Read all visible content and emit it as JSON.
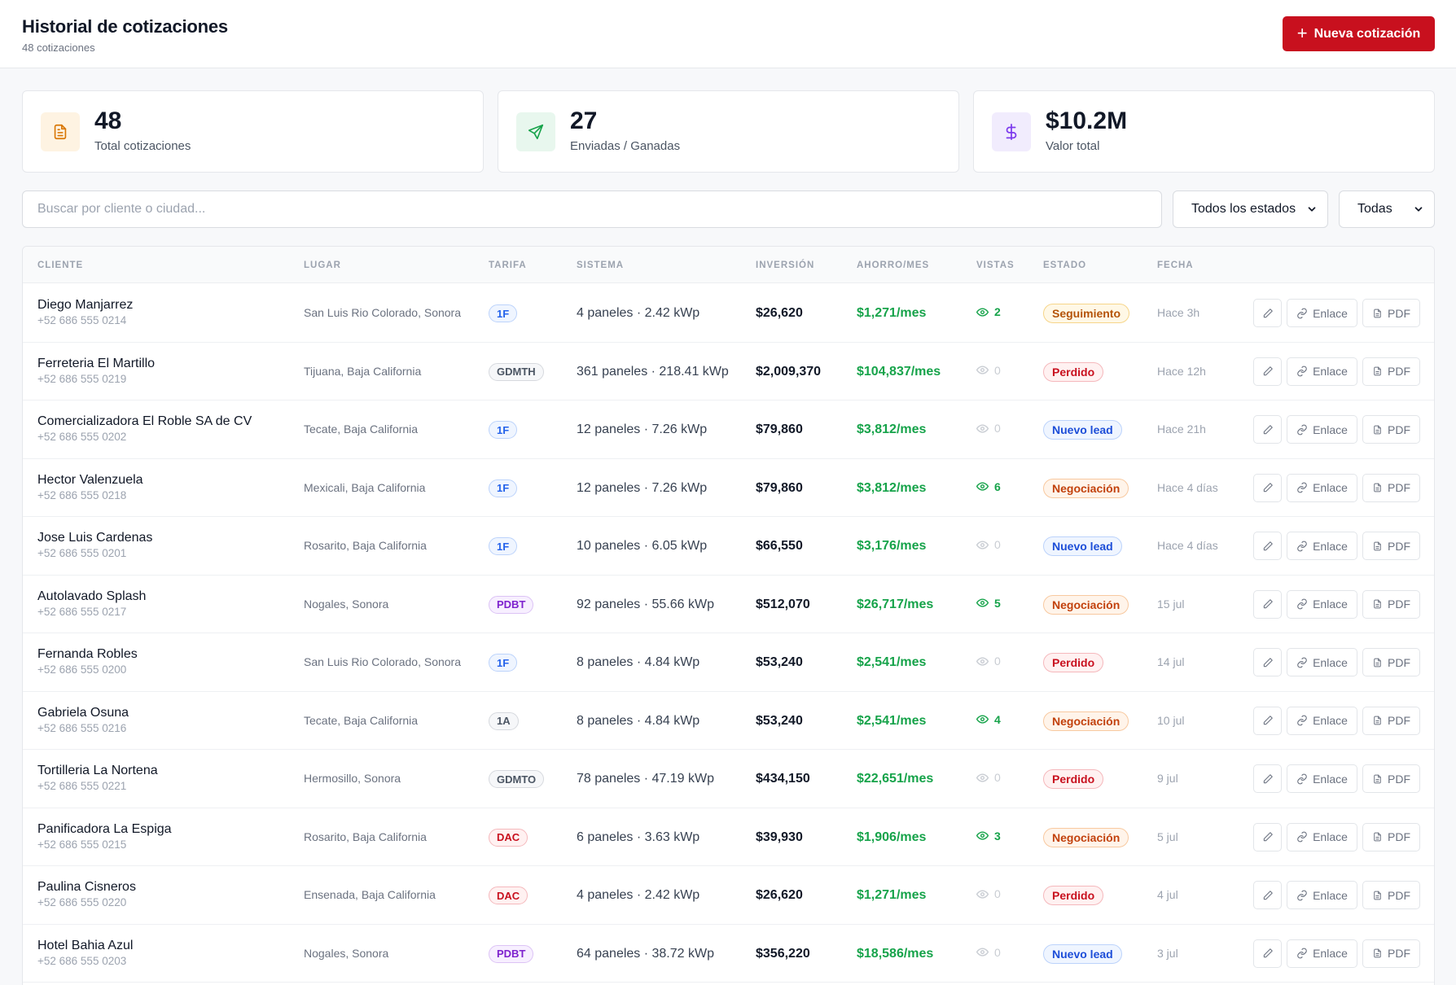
{
  "header": {
    "title": "Historial de cotizaciones",
    "subtitle": "48 cotizaciones",
    "new_button_label": "Nueva cotización"
  },
  "stats": [
    {
      "value": "48",
      "label": "Total cotizaciones",
      "icon": "document-icon",
      "color": "#d97706",
      "bg": "#fef3e2"
    },
    {
      "value": "27",
      "label": "Enviadas / Ganadas",
      "icon": "send-icon",
      "color": "#16a34a",
      "bg": "#e8f7ee"
    },
    {
      "value": "$10.2M",
      "label": "Valor total",
      "icon": "dollar-icon",
      "color": "#7c3aed",
      "bg": "#f1ecfd"
    }
  ],
  "filters": {
    "search_placeholder": "Buscar por cliente o ciudad...",
    "status_select": "Todos los estados",
    "period_select": "Todas"
  },
  "table": {
    "headers": [
      "CLIENTE",
      "LUGAR",
      "TARIFA",
      "SISTEMA",
      "INVERSIÓN",
      "AHORRO/MES",
      "VISTAS",
      "ESTADO",
      "FECHA"
    ],
    "action_labels": {
      "link": "Enlace",
      "pdf": "PDF"
    },
    "rows": [
      {
        "name": "Diego Manjarrez",
        "phone": "+52 686 555 0214",
        "place": "San Luis Rio Colorado, Sonora",
        "tariff": "1F",
        "system": "4 paneles · 2.42 kWp",
        "investment": "$26,620",
        "savings": "$1,271/mes",
        "views": "2",
        "status": "Seguimiento",
        "date": "Hace 3h"
      },
      {
        "name": "Ferreteria El Martillo",
        "phone": "+52 686 555 0219",
        "place": "Tijuana, Baja California",
        "tariff": "GDMTH",
        "system": "361 paneles · 218.41 kWp",
        "investment": "$2,009,370",
        "savings": "$104,837/mes",
        "views": "0",
        "status": "Perdido",
        "date": "Hace 12h"
      },
      {
        "name": "Comercializadora El Roble SA de CV",
        "phone": "+52 686 555 0202",
        "place": "Tecate, Baja California",
        "tariff": "1F",
        "system": "12 paneles · 7.26 kWp",
        "investment": "$79,860",
        "savings": "$3,812/mes",
        "views": "0",
        "status": "Nuevo lead",
        "date": "Hace 21h"
      },
      {
        "name": "Hector Valenzuela",
        "phone": "+52 686 555 0218",
        "place": "Mexicali, Baja California",
        "tariff": "1F",
        "system": "12 paneles · 7.26 kWp",
        "investment": "$79,860",
        "savings": "$3,812/mes",
        "views": "6",
        "status": "Negociación",
        "date": "Hace 4 días"
      },
      {
        "name": "Jose Luis Cardenas",
        "phone": "+52 686 555 0201",
        "place": "Rosarito, Baja California",
        "tariff": "1F",
        "system": "10 paneles · 6.05 kWp",
        "investment": "$66,550",
        "savings": "$3,176/mes",
        "views": "0",
        "status": "Nuevo lead",
        "date": "Hace 4 días"
      },
      {
        "name": "Autolavado Splash",
        "phone": "+52 686 555 0217",
        "place": "Nogales, Sonora",
        "tariff": "PDBT",
        "system": "92 paneles · 55.66 kWp",
        "investment": "$512,070",
        "savings": "$26,717/mes",
        "views": "5",
        "status": "Negociación",
        "date": "15 jul"
      },
      {
        "name": "Fernanda Robles",
        "phone": "+52 686 555 0200",
        "place": "San Luis Rio Colorado, Sonora",
        "tariff": "1F",
        "system": "8 paneles · 4.84 kWp",
        "investment": "$53,240",
        "savings": "$2,541/mes",
        "views": "0",
        "status": "Perdido",
        "date": "14 jul"
      },
      {
        "name": "Gabriela Osuna",
        "phone": "+52 686 555 0216",
        "place": "Tecate, Baja California",
        "tariff": "1A",
        "system": "8 paneles · 4.84 kWp",
        "investment": "$53,240",
        "savings": "$2,541/mes",
        "views": "4",
        "status": "Negociación",
        "date": "10 jul"
      },
      {
        "name": "Tortilleria La Nortena",
        "phone": "+52 686 555 0221",
        "place": "Hermosillo, Sonora",
        "tariff": "GDMTO",
        "system": "78 paneles · 47.19 kWp",
        "investment": "$434,150",
        "savings": "$22,651/mes",
        "views": "0",
        "status": "Perdido",
        "date": "9 jul"
      },
      {
        "name": "Panificadora La Espiga",
        "phone": "+52 686 555 0215",
        "place": "Rosarito, Baja California",
        "tariff": "DAC",
        "system": "6 paneles · 3.63 kWp",
        "investment": "$39,930",
        "savings": "$1,906/mes",
        "views": "3",
        "status": "Negociación",
        "date": "5 jul"
      },
      {
        "name": "Paulina Cisneros",
        "phone": "+52 686 555 0220",
        "place": "Ensenada, Baja California",
        "tariff": "DAC",
        "system": "4 paneles · 2.42 kWp",
        "investment": "$26,620",
        "savings": "$1,271/mes",
        "views": "0",
        "status": "Perdido",
        "date": "4 jul"
      },
      {
        "name": "Hotel Bahia Azul",
        "phone": "+52 686 555 0203",
        "place": "Nogales, Sonora",
        "tariff": "PDBT",
        "system": "64 paneles · 38.72 kWp",
        "investment": "$356,220",
        "savings": "$18,586/mes",
        "views": "0",
        "status": "Nuevo lead",
        "date": "3 jul"
      }
    ]
  },
  "tariff_styles": {
    "1F": {
      "color": "#2563eb",
      "bg": "#eff5ff",
      "border": "#bcd3fb"
    },
    "1A": {
      "color": "#4b5563",
      "bg": "#f6f7f9",
      "border": "#d6d9de"
    },
    "GDMTH": {
      "color": "#4b5563",
      "bg": "#f6f7f9",
      "border": "#d6d9de"
    },
    "GDMTO": {
      "color": "#4b5563",
      "bg": "#f6f7f9",
      "border": "#d6d9de"
    },
    "PDBT": {
      "color": "#7e22ce",
      "bg": "#f7efff",
      "border": "#dcc3f5"
    },
    "DAC": {
      "color": "#c8101e",
      "bg": "#fff1f1",
      "border": "#f5b8bc"
    }
  },
  "status_styles": {
    "Seguimiento": {
      "color": "#b45309",
      "bg": "#fff8e6",
      "border": "#f6d58a"
    },
    "Perdido": {
      "color": "#c8101e",
      "bg": "#fff1f1",
      "border": "#f5b8bc"
    },
    "Nuevo lead": {
      "color": "#1d4ed8",
      "bg": "#eff5ff",
      "border": "#bcd3fb"
    },
    "Negociación": {
      "color": "#c2410c",
      "bg": "#fff4ea",
      "border": "#f8c9a0"
    }
  },
  "colors": {
    "accent": "#c8101e",
    "savings_green": "#16a34a",
    "views_active": "#16a34a",
    "views_zero": "#c9cdd3"
  }
}
